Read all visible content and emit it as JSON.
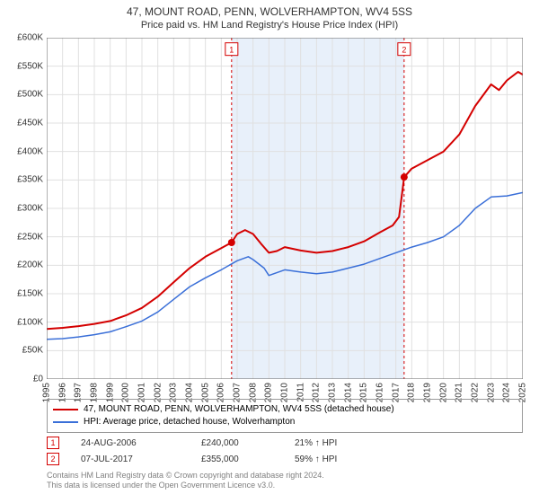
{
  "title": "47, MOUNT ROAD, PENN, WOLVERHAMPTON, WV4 5SS",
  "subtitle": "Price paid vs. HM Land Registry's House Price Index (HPI)",
  "chart": {
    "type": "line",
    "xlim": [
      1995,
      2025
    ],
    "ylim": [
      0,
      600000
    ],
    "ytick_step": 50000,
    "y_ticks_labels": [
      "£0",
      "£50K",
      "£100K",
      "£150K",
      "£200K",
      "£250K",
      "£300K",
      "£350K",
      "£400K",
      "£450K",
      "£500K",
      "£550K",
      "£600K"
    ],
    "x_ticks": [
      1995,
      1996,
      1997,
      1998,
      1999,
      2000,
      2001,
      2002,
      2003,
      2004,
      2005,
      2006,
      2007,
      2008,
      2009,
      2010,
      2011,
      2012,
      2013,
      2014,
      2015,
      2016,
      2017,
      2018,
      2019,
      2020,
      2021,
      2022,
      2023,
      2024,
      2025
    ],
    "background_color": "#ffffff",
    "grid_color": "#e0e0e0",
    "band_color": "#e8f0fa",
    "band_range": [
      2006.65,
      2017.52
    ],
    "series": [
      {
        "name": "47, MOUNT ROAD, PENN, WOLVERHAMPTON, WV4 5SS (detached house)",
        "color": "#d40000",
        "width": 2,
        "points": [
          [
            1995,
            88000
          ],
          [
            1996,
            90000
          ],
          [
            1997,
            93000
          ],
          [
            1998,
            97000
          ],
          [
            1999,
            102000
          ],
          [
            2000,
            112000
          ],
          [
            2001,
            125000
          ],
          [
            2002,
            145000
          ],
          [
            2003,
            170000
          ],
          [
            2004,
            195000
          ],
          [
            2005,
            215000
          ],
          [
            2006,
            230000
          ],
          [
            2006.65,
            240000
          ],
          [
            2007,
            255000
          ],
          [
            2007.5,
            262000
          ],
          [
            2008,
            255000
          ],
          [
            2008.5,
            238000
          ],
          [
            2009,
            222000
          ],
          [
            2009.5,
            225000
          ],
          [
            2010,
            232000
          ],
          [
            2011,
            226000
          ],
          [
            2012,
            222000
          ],
          [
            2013,
            225000
          ],
          [
            2014,
            232000
          ],
          [
            2015,
            242000
          ],
          [
            2016,
            258000
          ],
          [
            2016.8,
            270000
          ],
          [
            2017.2,
            285000
          ],
          [
            2017.52,
            355000
          ],
          [
            2018,
            370000
          ],
          [
            2019,
            385000
          ],
          [
            2020,
            400000
          ],
          [
            2021,
            430000
          ],
          [
            2022,
            480000
          ],
          [
            2023,
            518000
          ],
          [
            2023.5,
            508000
          ],
          [
            2024,
            525000
          ],
          [
            2024.7,
            540000
          ],
          [
            2025,
            535000
          ]
        ]
      },
      {
        "name": "HPI: Average price, detached house, Wolverhampton",
        "color": "#3a6fd8",
        "width": 1.5,
        "points": [
          [
            1995,
            70000
          ],
          [
            1996,
            71000
          ],
          [
            1997,
            74000
          ],
          [
            1998,
            78000
          ],
          [
            1999,
            83000
          ],
          [
            2000,
            92000
          ],
          [
            2001,
            102000
          ],
          [
            2002,
            118000
          ],
          [
            2003,
            140000
          ],
          [
            2004,
            162000
          ],
          [
            2005,
            178000
          ],
          [
            2006,
            192000
          ],
          [
            2007,
            208000
          ],
          [
            2007.7,
            215000
          ],
          [
            2008,
            210000
          ],
          [
            2008.7,
            195000
          ],
          [
            2009,
            182000
          ],
          [
            2010,
            192000
          ],
          [
            2011,
            188000
          ],
          [
            2012,
            185000
          ],
          [
            2013,
            188000
          ],
          [
            2014,
            195000
          ],
          [
            2015,
            202000
          ],
          [
            2016,
            212000
          ],
          [
            2017,
            222000
          ],
          [
            2018,
            232000
          ],
          [
            2019,
            240000
          ],
          [
            2020,
            250000
          ],
          [
            2021,
            270000
          ],
          [
            2022,
            300000
          ],
          [
            2023,
            320000
          ],
          [
            2024,
            322000
          ],
          [
            2025,
            328000
          ]
        ]
      }
    ],
    "markers": [
      {
        "label": "1",
        "x": 2006.65,
        "y": 240000,
        "color": "#d40000"
      },
      {
        "label": "2",
        "x": 2017.52,
        "y": 355000,
        "color": "#d40000"
      }
    ],
    "marker_flag_y": 580000
  },
  "legend": {
    "items": [
      {
        "color": "#d40000",
        "label": "47, MOUNT ROAD, PENN, WOLVERHAMPTON, WV4 5SS (detached house)"
      },
      {
        "color": "#3a6fd8",
        "label": "HPI: Average price, detached house, Wolverhampton"
      }
    ]
  },
  "transactions": [
    {
      "badge": "1",
      "date": "24-AUG-2006",
      "price": "£240,000",
      "pct": "21% ↑ HPI",
      "badge_color": "#d40000"
    },
    {
      "badge": "2",
      "date": "07-JUL-2017",
      "price": "£355,000",
      "pct": "59% ↑ HPI",
      "badge_color": "#d40000"
    }
  ],
  "footer_line1": "Contains HM Land Registry data © Crown copyright and database right 2024.",
  "footer_line2": "This data is licensed under the Open Government Licence v3.0."
}
